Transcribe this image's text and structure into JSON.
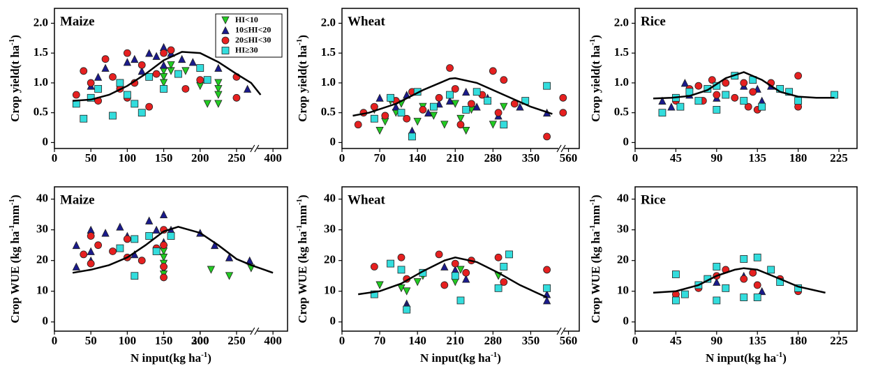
{
  "chart_data": [
    {
      "type": "scatter",
      "title": "Maize",
      "ylabel": [
        "Crop yield(t ha",
        "-1",
        ")"
      ],
      "legend": "upper right",
      "xlim": [
        0,
        420
      ],
      "xbreak": [
        270,
        370
      ],
      "xticks": [
        0,
        50,
        100,
        150,
        200,
        250,
        400
      ],
      "ylim": [
        -0.1,
        2.25
      ],
      "yticks": [
        0,
        0.5,
        {
          "value": 1,
          "label": "1.0"
        },
        1.5,
        {
          "value": 2,
          "label": "2.0"
        }
      ],
      "series": [
        {
          "name": "HI<10",
          "color": "#22cc22",
          "marker": "v",
          "x": [
            150,
            150,
            150,
            160,
            160,
            180,
            225,
            225,
            225,
            225,
            210,
            200
          ],
          "values": [
            1.2,
            1.1,
            1.0,
            1.2,
            1.3,
            1.2,
            1.0,
            0.9,
            0.8,
            0.65,
            0.65,
            0.95
          ]
        },
        {
          "name": "10≤HI<20",
          "color": "#1a1a8c",
          "marker": "^",
          "x": [
            50,
            60,
            70,
            90,
            100,
            110,
            120,
            130,
            140,
            150,
            150,
            160,
            175,
            190,
            225,
            265
          ],
          "values": [
            0.95,
            1.1,
            1.25,
            1.0,
            1.35,
            1.4,
            1.2,
            1.5,
            1.45,
            1.6,
            1.3,
            1.5,
            1.4,
            1.35,
            1.25,
            0.9
          ]
        },
        {
          "name": "20≤HI<30",
          "color": "#e62020",
          "marker": "o",
          "x": [
            30,
            40,
            50,
            60,
            70,
            80,
            90,
            100,
            100,
            110,
            120,
            130,
            140,
            150,
            160,
            180,
            200,
            250,
            250
          ],
          "values": [
            0.8,
            1.2,
            1.0,
            0.7,
            1.4,
            1.1,
            0.9,
            1.5,
            0.75,
            1.0,
            1.3,
            0.6,
            1.15,
            1.5,
            1.55,
            0.9,
            1.05,
            1.1,
            0.75
          ]
        },
        {
          "name": "HI≥30",
          "color": "#33dddd",
          "marker": "s",
          "x": [
            30,
            40,
            50,
            60,
            80,
            90,
            100,
            110,
            120,
            130,
            150,
            170,
            200,
            210
          ],
          "values": [
            0.65,
            0.4,
            0.75,
            0.9,
            0.45,
            1.0,
            0.8,
            0.65,
            0.5,
            1.1,
            0.9,
            1.15,
            1.25,
            1.05
          ]
        }
      ],
      "fit": {
        "x": [
          25,
          50,
          75,
          100,
          125,
          150,
          175,
          200,
          225,
          250,
          270,
          383
        ],
        "y": [
          0.7,
          0.72,
          0.8,
          0.95,
          1.15,
          1.38,
          1.52,
          1.5,
          1.35,
          1.15,
          1.0,
          0.8
        ]
      }
    },
    {
      "type": "scatter",
      "title": "Wheat",
      "ylabel": [
        "Crop yield(t ha",
        "-1",
        ")"
      ],
      "xlim": [
        0,
        580
      ],
      "xbreak": [
        400,
        540
      ],
      "xticks": [
        0,
        70,
        140,
        210,
        280,
        350,
        560
      ],
      "ylim": [
        -0.1,
        2.25
      ],
      "yticks": [
        0,
        0.5,
        {
          "value": 1,
          "label": "1.0"
        },
        1.5,
        {
          "value": 2,
          "label": "2.0"
        }
      ],
      "series": [
        {
          "color": "#22cc22",
          "marker": "v",
          "x": [
            60,
            70,
            80,
            90,
            100,
            110,
            140,
            150,
            170,
            190,
            210,
            220,
            230,
            240,
            280,
            300
          ],
          "values": [
            0.55,
            0.2,
            0.35,
            0.7,
            0.5,
            0.65,
            0.35,
            0.6,
            0.45,
            0.3,
            0.65,
            0.4,
            0.2,
            0.55,
            0.3,
            0.6
          ]
        },
        {
          "color": "#1a1a8c",
          "marker": "^",
          "x": [
            70,
            100,
            120,
            130,
            160,
            180,
            200,
            230,
            250,
            270,
            290,
            330,
            380
          ],
          "values": [
            0.75,
            0.6,
            0.8,
            0.2,
            0.5,
            0.65,
            0.7,
            0.85,
            0.6,
            0.75,
            0.45,
            0.6,
            0.5
          ]
        },
        {
          "color": "#e62020",
          "marker": "o",
          "x": [
            30,
            40,
            60,
            80,
            100,
            120,
            130,
            150,
            180,
            200,
            210,
            220,
            240,
            260,
            280,
            290,
            300,
            320,
            380,
            550,
            550
          ],
          "values": [
            0.3,
            0.5,
            0.6,
            0.45,
            0.7,
            0.4,
            0.85,
            0.55,
            0.75,
            1.25,
            0.9,
            0.3,
            0.65,
            0.8,
            1.2,
            0.5,
            1.05,
            0.65,
            0.1,
            0.75,
            0.5
          ]
        },
        {
          "color": "#33dddd",
          "marker": "s",
          "x": [
            60,
            90,
            110,
            130,
            140,
            170,
            200,
            230,
            250,
            270,
            300,
            340,
            380
          ],
          "values": [
            0.4,
            0.75,
            0.5,
            0.1,
            0.85,
            0.6,
            0.8,
            0.55,
            0.85,
            0.7,
            0.3,
            0.7,
            0.95
          ]
        }
      ],
      "fit": {
        "x": [
          20,
          50,
          100,
          150,
          200,
          210,
          250,
          300,
          350,
          390
        ],
        "y": [
          0.45,
          0.5,
          0.65,
          0.88,
          1.07,
          1.08,
          1.0,
          0.8,
          0.6,
          0.48
        ]
      }
    },
    {
      "type": "scatter",
      "title": "Rice",
      "ylabel": [
        "Crop yield(t ha",
        "-1",
        ")"
      ],
      "xlim": [
        0,
        245
      ],
      "xticks": [
        0,
        45,
        90,
        135,
        180,
        225
      ],
      "ylim": [
        -0.1,
        2.25
      ],
      "yticks": [
        0,
        0.5,
        {
          "value": 1,
          "label": "1.0"
        },
        1.5,
        {
          "value": 2,
          "label": "2.0"
        }
      ],
      "series": [
        {
          "color": "#1a1a8c",
          "marker": "^",
          "x": [
            30,
            40,
            55,
            60,
            90,
            120,
            135,
            140,
            150
          ],
          "values": [
            0.7,
            0.6,
            1.0,
            0.8,
            0.75,
            0.95,
            0.9,
            0.7,
            0.95
          ]
        },
        {
          "color": "#e62020",
          "marker": "o",
          "x": [
            45,
            60,
            70,
            75,
            85,
            90,
            100,
            110,
            120,
            125,
            130,
            135,
            150,
            180,
            180
          ],
          "values": [
            0.7,
            0.9,
            0.95,
            0.7,
            1.05,
            0.8,
            1.0,
            0.75,
            1.0,
            0.6,
            0.85,
            0.55,
            1.0,
            1.12,
            0.6
          ]
        },
        {
          "color": "#33dddd",
          "marker": "s",
          "x": [
            30,
            45,
            50,
            60,
            70,
            80,
            90,
            90,
            100,
            110,
            120,
            130,
            140,
            160,
            170,
            180,
            220
          ],
          "values": [
            0.5,
            0.75,
            0.6,
            0.85,
            0.7,
            0.9,
            0.55,
            0.95,
            0.8,
            1.12,
            0.7,
            1.05,
            0.6,
            0.9,
            0.85,
            0.7,
            0.8
          ]
        }
      ],
      "fit": {
        "x": [
          20,
          40,
          60,
          80,
          100,
          120,
          140,
          160,
          180,
          200,
          220
        ],
        "y": [
          0.74,
          0.75,
          0.78,
          0.88,
          1.08,
          1.18,
          1.05,
          0.85,
          0.77,
          0.75,
          0.75
        ]
      }
    },
    {
      "type": "scatter",
      "title": "Maize",
      "ylabel": [
        "Crop WUE  (kg ha",
        "-1",
        "mm",
        "-1",
        ")"
      ],
      "xlabel": [
        "N input(kg ha",
        "-1",
        ")"
      ],
      "xlim": [
        0,
        420
      ],
      "xbreak": [
        270,
        370
      ],
      "xticks": [
        0,
        50,
        100,
        150,
        200,
        250,
        300,
        400
      ],
      "ylim": [
        -3,
        44
      ],
      "yticks": [
        0,
        10,
        20,
        30,
        40
      ],
      "series": [
        {
          "color": "#22cc22",
          "marker": "v",
          "x": [
            150,
            150,
            150,
            150,
            150,
            215,
            240,
            270
          ],
          "values": [
            23,
            21,
            19,
            17,
            15.5,
            17,
            15,
            17.5
          ]
        },
        {
          "color": "#1a1a8c",
          "marker": "^",
          "x": [
            30,
            30,
            50,
            50,
            50,
            70,
            90,
            100,
            110,
            130,
            140,
            150,
            150,
            160,
            200,
            220,
            240,
            268
          ],
          "values": [
            18,
            25,
            30,
            20,
            23,
            29,
            31,
            28,
            22,
            33,
            30,
            35,
            26,
            30,
            29,
            25,
            21,
            20
          ]
        },
        {
          "color": "#e62020",
          "marker": "o",
          "x": [
            40,
            50,
            50,
            60,
            80,
            100,
            100,
            120,
            140,
            150,
            150,
            150,
            150
          ],
          "values": [
            22,
            28,
            19,
            25,
            23,
            21,
            27,
            20,
            24,
            30,
            14.5,
            18,
            25
          ]
        },
        {
          "color": "#33dddd",
          "marker": "s",
          "x": [
            90,
            110,
            110,
            130,
            140,
            160
          ],
          "values": [
            24,
            15,
            27,
            28,
            23,
            28
          ]
        }
      ],
      "fit": {
        "x": [
          25,
          50,
          75,
          100,
          125,
          150,
          170,
          200,
          225,
          250,
          270,
          400
        ],
        "y": [
          16,
          17,
          18.5,
          21,
          25,
          29.5,
          31,
          29,
          25,
          20.5,
          18.5,
          16
        ]
      }
    },
    {
      "type": "scatter",
      "title": "Wheat",
      "ylabel": [
        "Crop WUE  (kg ha",
        "-1",
        "mm",
        "-1",
        ")"
      ],
      "xlabel": [
        "N input(kg ha",
        "-1",
        ")"
      ],
      "xlim": [
        0,
        580
      ],
      "xbreak": [
        400,
        540
      ],
      "xticks": [
        0,
        70,
        140,
        210,
        280,
        350,
        560
      ],
      "ylim": [
        -3,
        44
      ],
      "yticks": [
        0,
        10,
        20,
        30,
        40
      ],
      "series": [
        {
          "color": "#22cc22",
          "marker": "v",
          "x": [
            70,
            110,
            120,
            140,
            150,
            210,
            220,
            290
          ],
          "values": [
            12,
            11,
            10,
            13,
            15,
            13,
            17,
            15
          ]
        },
        {
          "color": "#1a1a8c",
          "marker": "^",
          "x": [
            120,
            120,
            190,
            210,
            230,
            380,
            380
          ],
          "values": [
            6,
            5,
            18,
            17,
            14,
            9,
            7
          ]
        },
        {
          "color": "#e62020",
          "marker": "o",
          "x": [
            60,
            110,
            120,
            120,
            180,
            190,
            210,
            230,
            240,
            290,
            300,
            380
          ],
          "values": [
            18,
            21,
            14,
            4,
            22,
            12,
            19,
            16,
            20,
            21,
            13,
            17
          ]
        },
        {
          "color": "#33dddd",
          "marker": "s",
          "x": [
            60,
            90,
            110,
            120,
            150,
            210,
            220,
            290,
            300,
            310,
            380
          ],
          "values": [
            9,
            19,
            17,
            4,
            16,
            15,
            7,
            11,
            18,
            22,
            11
          ]
        }
      ],
      "fit": {
        "x": [
          30,
          70,
          110,
          150,
          190,
          210,
          250,
          290,
          330,
          380
        ],
        "y": [
          9,
          10,
          12.5,
          16.5,
          20,
          21,
          19.5,
          16,
          12,
          8
        ]
      }
    },
    {
      "type": "scatter",
      "title": "Rice",
      "ylabel": [
        "Crop WUE  (kg ha",
        "-1",
        "mm",
        "-1",
        ")"
      ],
      "xlabel": [
        "N input(kg ha",
        "-1",
        ")"
      ],
      "xlim": [
        0,
        245
      ],
      "xticks": [
        0,
        45,
        90,
        135,
        180,
        225
      ],
      "ylim": [
        -3,
        44
      ],
      "yticks": [
        0,
        10,
        20,
        30,
        40
      ],
      "series": [
        {
          "color": "#1a1a8c",
          "marker": "^",
          "x": [
            90,
            120,
            140
          ],
          "values": [
            13,
            15,
            10
          ]
        },
        {
          "color": "#e62020",
          "marker": "o",
          "x": [
            45,
            70,
            90,
            100,
            120,
            130,
            135,
            160,
            180
          ],
          "values": [
            9,
            11,
            15,
            17,
            14,
            16,
            12,
            14,
            10
          ]
        },
        {
          "color": "#33dddd",
          "marker": "s",
          "x": [
            45,
            45,
            55,
            70,
            80,
            90,
            90,
            100,
            120,
            120,
            135,
            135,
            150,
            160,
            180
          ],
          "values": [
            15.5,
            7,
            9,
            12,
            14,
            18,
            7,
            11,
            20.5,
            8,
            21,
            8,
            17,
            13,
            11
          ]
        }
      ],
      "fit": {
        "x": [
          20,
          45,
          70,
          90,
          110,
          120,
          135,
          160,
          180,
          210
        ],
        "y": [
          9.5,
          10,
          12,
          15,
          17,
          17.5,
          17,
          14,
          11.5,
          9.5
        ]
      }
    }
  ]
}
